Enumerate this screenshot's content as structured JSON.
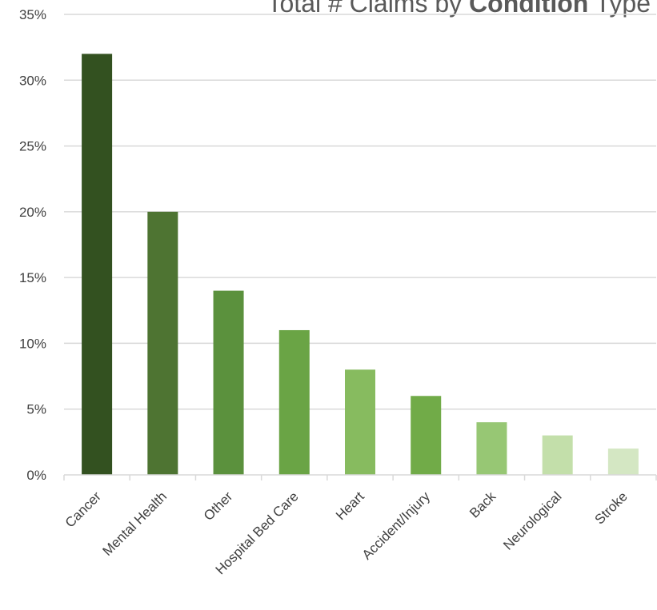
{
  "chart_data": {
    "type": "bar",
    "title_parts": {
      "pre": "Total # Claims by ",
      "bold": "Condition",
      "post": " Type"
    },
    "xlabel": "",
    "ylabel": "",
    "categories": [
      "Cancer",
      "Mental Health",
      "Other",
      "Hospital Bed Care",
      "Heart",
      "Accident/Injury",
      "Back",
      "Neurological",
      "Stroke"
    ],
    "values": [
      32,
      20,
      14,
      11,
      8,
      6,
      4,
      3,
      2
    ],
    "value_unit": "percent",
    "ylim": [
      0,
      35
    ],
    "yticks": [
      "0%",
      "5%",
      "10%",
      "15%",
      "20%",
      "25%",
      "30%",
      "35%"
    ],
    "grid": true,
    "legend": "none",
    "colors": [
      "#335120",
      "#4e7432",
      "#5b913d",
      "#6aa445",
      "#87bb5f",
      "#71ab48",
      "#97c774",
      "#c3dfaa",
      "#d4e7c3"
    ]
  }
}
